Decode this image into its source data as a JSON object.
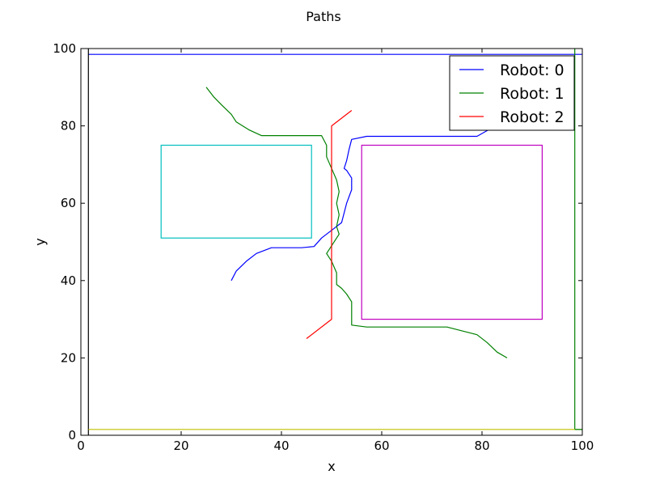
{
  "chart_data": {
    "type": "line",
    "title": "Paths",
    "xlabel": "x",
    "ylabel": "y",
    "xlim": [
      0,
      100
    ],
    "ylim": [
      0,
      100
    ],
    "xticks": [
      "0",
      "20",
      "40",
      "60",
      "80",
      "100"
    ],
    "yticks": [
      "0",
      "20",
      "40",
      "60",
      "80",
      "100"
    ],
    "grid": false,
    "legend_position": "top-right",
    "series": [
      {
        "name": "Robot: 0",
        "color": "#0000ff",
        "points": [
          [
            30,
            40
          ],
          [
            31,
            42.5
          ],
          [
            33,
            45
          ],
          [
            35,
            47
          ],
          [
            38,
            48.5
          ],
          [
            44,
            48.5
          ],
          [
            46.5,
            48.8
          ],
          [
            48,
            51
          ],
          [
            50,
            53
          ],
          [
            52,
            55
          ],
          [
            53,
            60
          ],
          [
            54,
            63.5
          ],
          [
            54,
            66.5
          ],
          [
            53,
            68.5
          ],
          [
            52.5,
            69
          ],
          [
            53,
            71
          ],
          [
            53.5,
            74
          ],
          [
            54,
            76.5
          ],
          [
            57,
            77.3
          ],
          [
            79,
            77.3
          ],
          [
            82,
            79.5
          ],
          [
            83,
            82
          ],
          [
            84,
            84
          ]
        ]
      },
      {
        "name": "Robot: 1",
        "color": "#008000",
        "points": [
          [
            25,
            90
          ],
          [
            26.5,
            87.5
          ],
          [
            28,
            85.5
          ],
          [
            30,
            83
          ],
          [
            31,
            81
          ],
          [
            33.5,
            79
          ],
          [
            36,
            77.5
          ],
          [
            48,
            77.5
          ],
          [
            49,
            75
          ],
          [
            49,
            72
          ],
          [
            50,
            69
          ],
          [
            51,
            66
          ],
          [
            51.5,
            63
          ],
          [
            51,
            60
          ],
          [
            51.5,
            57
          ],
          [
            51,
            54
          ],
          [
            51.5,
            52
          ],
          [
            50,
            49
          ],
          [
            49,
            47
          ],
          [
            50,
            45
          ],
          [
            51,
            42
          ],
          [
            51,
            39
          ],
          [
            52,
            38
          ],
          [
            53,
            36.5
          ],
          [
            54,
            34.5
          ],
          [
            54,
            28.5
          ],
          [
            57,
            28
          ],
          [
            73,
            28
          ],
          [
            76,
            27
          ],
          [
            79,
            26
          ],
          [
            81,
            24
          ],
          [
            83,
            21.5
          ],
          [
            85,
            20
          ]
        ]
      },
      {
        "name": "Robot: 2",
        "color": "#ff0000",
        "points": [
          [
            45,
            25
          ],
          [
            50,
            30
          ],
          [
            50,
            80
          ],
          [
            54,
            84
          ]
        ]
      }
    ],
    "obstacles": [
      {
        "color": "#00bfbf",
        "x": [
          16,
          46
        ],
        "y": [
          51,
          75
        ]
      },
      {
        "color": "#bf00bf",
        "x": [
          56,
          92
        ],
        "y": [
          30,
          75
        ]
      }
    ],
    "boundaries": [
      {
        "color": "#0000ff",
        "points": [
          [
            1.5,
            98.5
          ],
          [
            100,
            98.5
          ]
        ]
      },
      {
        "color": "#000000",
        "points": [
          [
            1.5,
            0
          ],
          [
            1.5,
            100
          ]
        ]
      },
      {
        "color": "#008000",
        "points": [
          [
            98.5,
            1.5
          ],
          [
            98.5,
            100
          ]
        ]
      },
      {
        "color": "#bfbf00",
        "points": [
          [
            1.5,
            1.5
          ],
          [
            100,
            1.5
          ]
        ]
      },
      {
        "color": "#008000",
        "points": [
          [
            98.5,
            1.5
          ],
          [
            100,
            1.5
          ]
        ]
      }
    ]
  }
}
